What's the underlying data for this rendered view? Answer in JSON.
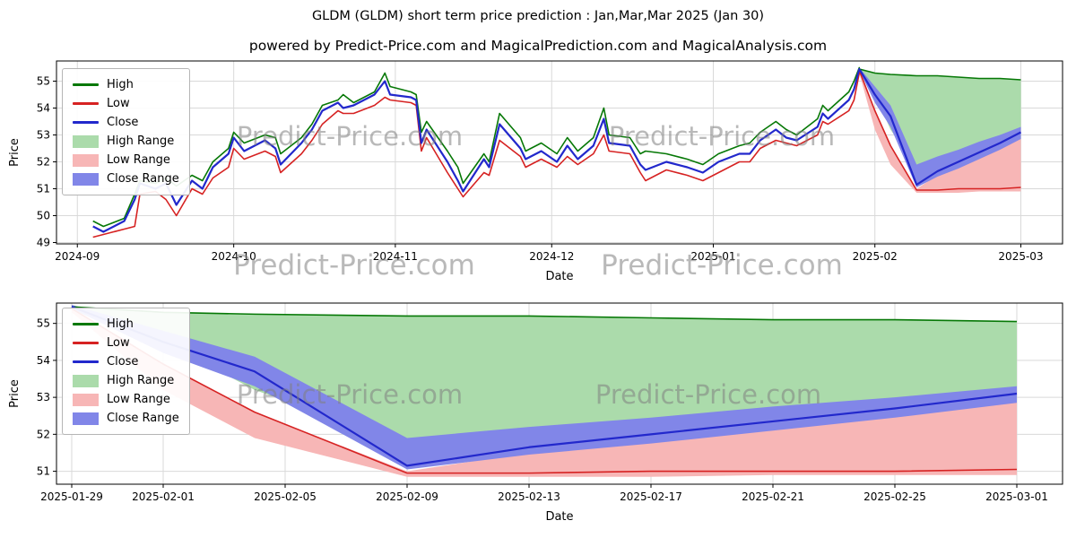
{
  "figure": {
    "title": "GLDM (GLDM) short term price prediction : Jan,Mar,Mar 2025 (Jan 30)",
    "subtitle": "powered by Predict-Price.com and MagicalPrediction.com and MagicalAnalysis.com",
    "watermark_text": "Predict-Price.com",
    "background": "#ffffff"
  },
  "colors": {
    "high": "#067806",
    "low": "#d62222",
    "close": "#2228cc",
    "high_range": "#abdbab",
    "low_range": "#f7b6b6",
    "close_range": "#8186e8",
    "grid": "#d9d9d9",
    "spine": "#000000"
  },
  "legend": {
    "items": [
      {
        "label": "High",
        "swatch": "line",
        "color": "#067806"
      },
      {
        "label": "Low",
        "swatch": "line",
        "color": "#d62222"
      },
      {
        "label": "Close",
        "swatch": "line",
        "color": "#2228cc"
      },
      {
        "label": "High Range",
        "swatch": "patch",
        "color": "#abdbab"
      },
      {
        "label": "Low Range",
        "swatch": "patch",
        "color": "#f7b6b6"
      },
      {
        "label": "Close Range",
        "swatch": "patch",
        "color": "#8186e8"
      }
    ]
  },
  "chart_data": [
    {
      "name": "price-history-chart",
      "type": "line",
      "xlabel": "Date",
      "ylabel": "Price",
      "xlim": [
        "2024-08-28",
        "2025-03-09"
      ],
      "ylim": [
        48.95,
        55.75
      ],
      "yticks": [
        49,
        50,
        51,
        52,
        53,
        54,
        55
      ],
      "xticks": [
        {
          "date": "2024-09-01",
          "label": "2024-09"
        },
        {
          "date": "2024-10-01",
          "label": "2024-10"
        },
        {
          "date": "2024-11-01",
          "label": "2024-11"
        },
        {
          "date": "2024-12-01",
          "label": "2024-12"
        },
        {
          "date": "2025-01-01",
          "label": "2025-01"
        },
        {
          "date": "2025-02-01",
          "label": "2025-02"
        },
        {
          "date": "2025-03-01",
          "label": "2025-03"
        }
      ],
      "series": {
        "dates": [
          "2024-09-04",
          "2024-09-06",
          "2024-09-10",
          "2024-09-12",
          "2024-09-13",
          "2024-09-16",
          "2024-09-18",
          "2024-09-20",
          "2024-09-23",
          "2024-09-25",
          "2024-09-27",
          "2024-09-30",
          "2024-10-01",
          "2024-10-03",
          "2024-10-07",
          "2024-10-09",
          "2024-10-10",
          "2024-10-14",
          "2024-10-16",
          "2024-10-18",
          "2024-10-21",
          "2024-10-22",
          "2024-10-24",
          "2024-10-28",
          "2024-10-30",
          "2024-10-31",
          "2024-11-04",
          "2024-11-05",
          "2024-11-06",
          "2024-11-07",
          "2024-11-11",
          "2024-11-13",
          "2024-11-14",
          "2024-11-18",
          "2024-11-19",
          "2024-11-21",
          "2024-11-25",
          "2024-11-26",
          "2024-11-29",
          "2024-12-02",
          "2024-12-04",
          "2024-12-06",
          "2024-12-09",
          "2024-12-11",
          "2024-12-12",
          "2024-12-16",
          "2024-12-18",
          "2024-12-19",
          "2024-12-23",
          "2024-12-27",
          "2024-12-30",
          "2025-01-02",
          "2025-01-06",
          "2025-01-08",
          "2025-01-10",
          "2025-01-13",
          "2025-01-15",
          "2025-01-17",
          "2025-01-21",
          "2025-01-22",
          "2025-01-23",
          "2025-01-27",
          "2025-01-28",
          "2025-01-29"
        ],
        "high": [
          49.8,
          49.6,
          49.9,
          50.8,
          51.3,
          51.2,
          51.4,
          51.1,
          51.5,
          51.3,
          52.0,
          52.5,
          53.1,
          52.7,
          53.0,
          52.9,
          52.3,
          52.9,
          53.4,
          54.1,
          54.3,
          54.5,
          54.2,
          54.6,
          55.3,
          54.8,
          54.6,
          54.5,
          53.1,
          53.5,
          52.4,
          51.8,
          51.2,
          52.3,
          52.0,
          53.8,
          52.9,
          52.4,
          52.7,
          52.3,
          52.9,
          52.4,
          52.9,
          54.0,
          53.0,
          52.9,
          52.3,
          52.4,
          52.3,
          52.1,
          51.9,
          52.3,
          52.6,
          52.7,
          53.1,
          53.5,
          53.2,
          53.0,
          53.6,
          54.1,
          53.9,
          54.6,
          55.0,
          55.5
        ],
        "low": [
          49.2,
          49.3,
          49.5,
          49.6,
          50.8,
          50.9,
          50.6,
          50.0,
          51.0,
          50.8,
          51.4,
          51.8,
          52.5,
          52.1,
          52.4,
          52.2,
          51.6,
          52.3,
          52.8,
          53.4,
          53.9,
          53.8,
          53.8,
          54.1,
          54.4,
          54.3,
          54.2,
          54.1,
          52.4,
          52.9,
          51.6,
          51.0,
          50.7,
          51.6,
          51.5,
          52.8,
          52.2,
          51.8,
          52.1,
          51.8,
          52.2,
          51.9,
          52.3,
          53.0,
          52.4,
          52.3,
          51.6,
          51.3,
          51.7,
          51.5,
          51.3,
          51.6,
          52.0,
          52.0,
          52.5,
          52.8,
          52.7,
          52.6,
          53.0,
          53.5,
          53.4,
          53.9,
          54.3,
          55.3
        ],
        "close": [
          49.6,
          49.4,
          49.8,
          50.6,
          51.2,
          51.0,
          51.2,
          50.4,
          51.3,
          51.0,
          51.8,
          52.3,
          52.9,
          52.4,
          52.8,
          52.5,
          51.9,
          52.7,
          53.2,
          53.9,
          54.2,
          54.0,
          54.1,
          54.5,
          55.0,
          54.5,
          54.4,
          54.3,
          52.7,
          53.2,
          52.0,
          51.3,
          50.9,
          52.1,
          51.8,
          53.4,
          52.5,
          52.1,
          52.4,
          52.0,
          52.6,
          52.1,
          52.6,
          53.6,
          52.7,
          52.6,
          51.9,
          51.7,
          52.0,
          51.8,
          51.6,
          52.0,
          52.3,
          52.3,
          52.8,
          53.2,
          52.9,
          52.8,
          53.3,
          53.8,
          53.6,
          54.3,
          54.7,
          55.45
        ],
        "series_labels": [
          "High",
          "Low",
          "Close"
        ]
      },
      "forecast": {
        "dates": [
          "2025-01-29",
          "2025-02-01",
          "2025-02-04",
          "2025-02-09",
          "2025-02-13",
          "2025-02-17",
          "2025-02-21",
          "2025-02-25",
          "2025-03-01"
        ],
        "high": [
          55.45,
          55.3,
          55.25,
          55.2,
          55.2,
          55.15,
          55.1,
          55.1,
          55.05
        ],
        "high_lower": [
          55.35,
          54.5,
          53.2,
          51.75,
          51.95,
          52.2,
          52.4,
          52.65,
          52.9
        ],
        "close_upper": [
          55.5,
          54.8,
          54.1,
          51.9,
          52.2,
          52.45,
          52.75,
          53.0,
          53.3
        ],
        "close": [
          55.45,
          54.5,
          53.7,
          51.15,
          51.65,
          52.0,
          52.35,
          52.7,
          53.1
        ],
        "close_lower": [
          55.4,
          54.2,
          53.3,
          51.05,
          51.45,
          51.75,
          52.1,
          52.45,
          52.85
        ],
        "low_upper": [
          55.4,
          53.9,
          52.6,
          51.0,
          51.5,
          51.9,
          52.25,
          52.6,
          52.9
        ],
        "low": [
          55.4,
          53.9,
          52.6,
          50.95,
          50.95,
          51.0,
          51.0,
          51.0,
          51.05
        ],
        "low_lower": [
          55.3,
          53.2,
          51.9,
          50.85,
          50.85,
          50.85,
          50.9,
          50.9,
          50.9
        ]
      }
    },
    {
      "name": "forecast-zoom-chart",
      "type": "line",
      "xlabel": "Date",
      "ylabel": "Price",
      "xlim": [
        "2025-01-28T12:00:00",
        "2025-03-02T12:00:00"
      ],
      "ylim": [
        50.65,
        55.55
      ],
      "yticks": [
        51,
        52,
        53,
        54,
        55
      ],
      "xticks": [
        {
          "date": "2025-01-29",
          "label": "2025-01-29"
        },
        {
          "date": "2025-02-01",
          "label": "2025-02-01"
        },
        {
          "date": "2025-02-05",
          "label": "2025-02-05"
        },
        {
          "date": "2025-02-09",
          "label": "2025-02-09"
        },
        {
          "date": "2025-02-13",
          "label": "2025-02-13"
        },
        {
          "date": "2025-02-17",
          "label": "2025-02-17"
        },
        {
          "date": "2025-02-21",
          "label": "2025-02-21"
        },
        {
          "date": "2025-02-25",
          "label": "2025-02-25"
        },
        {
          "date": "2025-03-01",
          "label": "2025-03-01"
        }
      ],
      "forecast": {
        "dates": [
          "2025-01-29",
          "2025-02-01",
          "2025-02-04",
          "2025-02-09",
          "2025-02-13",
          "2025-02-17",
          "2025-02-21",
          "2025-02-25",
          "2025-03-01"
        ],
        "high": [
          55.45,
          55.3,
          55.25,
          55.2,
          55.2,
          55.15,
          55.1,
          55.1,
          55.05
        ],
        "high_lower": [
          55.35,
          54.5,
          53.2,
          51.75,
          51.95,
          52.2,
          52.4,
          52.65,
          52.9
        ],
        "close_upper": [
          55.5,
          54.8,
          54.1,
          51.9,
          52.2,
          52.45,
          52.75,
          53.0,
          53.3
        ],
        "close": [
          55.45,
          54.5,
          53.7,
          51.15,
          51.65,
          52.0,
          52.35,
          52.7,
          53.1
        ],
        "close_lower": [
          55.4,
          54.2,
          53.3,
          51.05,
          51.45,
          51.75,
          52.1,
          52.45,
          52.85
        ],
        "low_upper": [
          55.4,
          53.9,
          52.6,
          51.0,
          51.5,
          51.9,
          52.25,
          52.6,
          52.9
        ],
        "low": [
          55.4,
          53.9,
          52.6,
          50.95,
          50.95,
          51.0,
          51.0,
          51.0,
          51.05
        ],
        "low_lower": [
          55.3,
          53.2,
          51.9,
          50.85,
          50.85,
          50.85,
          50.9,
          50.9,
          50.9
        ]
      }
    }
  ]
}
